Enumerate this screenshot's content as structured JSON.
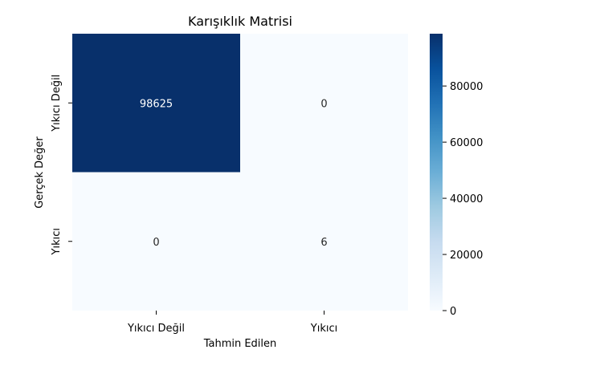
{
  "chart_data": {
    "type": "heatmap",
    "title": "Karışıklık Matrisi",
    "xlabel": "Tahmin Edilen",
    "ylabel": "Gerçek Değer",
    "x_categories": [
      "Yıkıcı Değil",
      "Yıkıcı"
    ],
    "y_categories": [
      "Yıkıcı Değil",
      "Yıkıcı"
    ],
    "values": [
      [
        98625,
        0
      ],
      [
        0,
        6
      ]
    ],
    "annotations": [
      [
        "98625",
        "0"
      ],
      [
        "0",
        "6"
      ]
    ],
    "colormap": "Blues",
    "colorbar": {
      "min": 0,
      "max": 98625,
      "ticks": [
        0,
        20000,
        40000,
        60000,
        80000
      ],
      "tick_labels": [
        "0",
        "20000",
        "40000",
        "60000",
        "80000"
      ]
    },
    "colors": {
      "low": "#f7fbff",
      "high": "#08306b",
      "text_dark_bg": "#ffffff",
      "text_light_bg": "#262626"
    }
  }
}
